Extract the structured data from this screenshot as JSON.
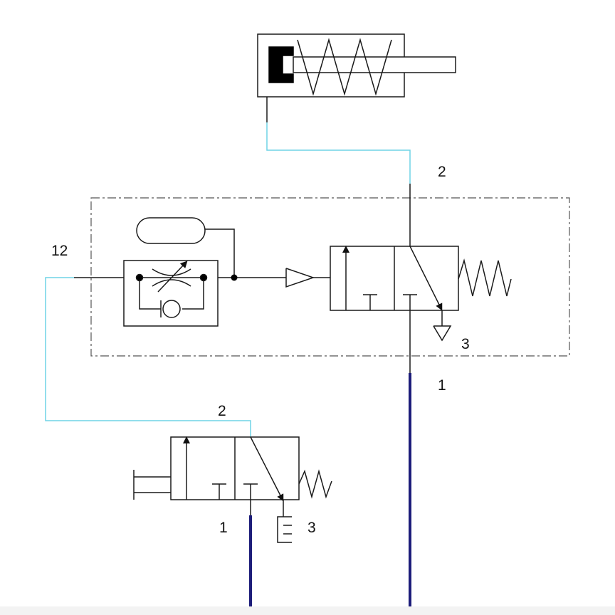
{
  "labels": {
    "cylinder_port": "2",
    "delay_pilot_port": "12",
    "main_valve_output_port": "2",
    "main_valve_exhaust_port": "3",
    "main_valve_supply_port": "1",
    "hand_valve_output_port": "2",
    "hand_valve_supply_port": "1",
    "hand_valve_exhaust_port": "3"
  },
  "colors": {
    "symbol_stroke": "#1a1a1a",
    "signal_line": "#6fd3e6",
    "supply_line": "#1d1d7a",
    "background": "#ffffff"
  }
}
